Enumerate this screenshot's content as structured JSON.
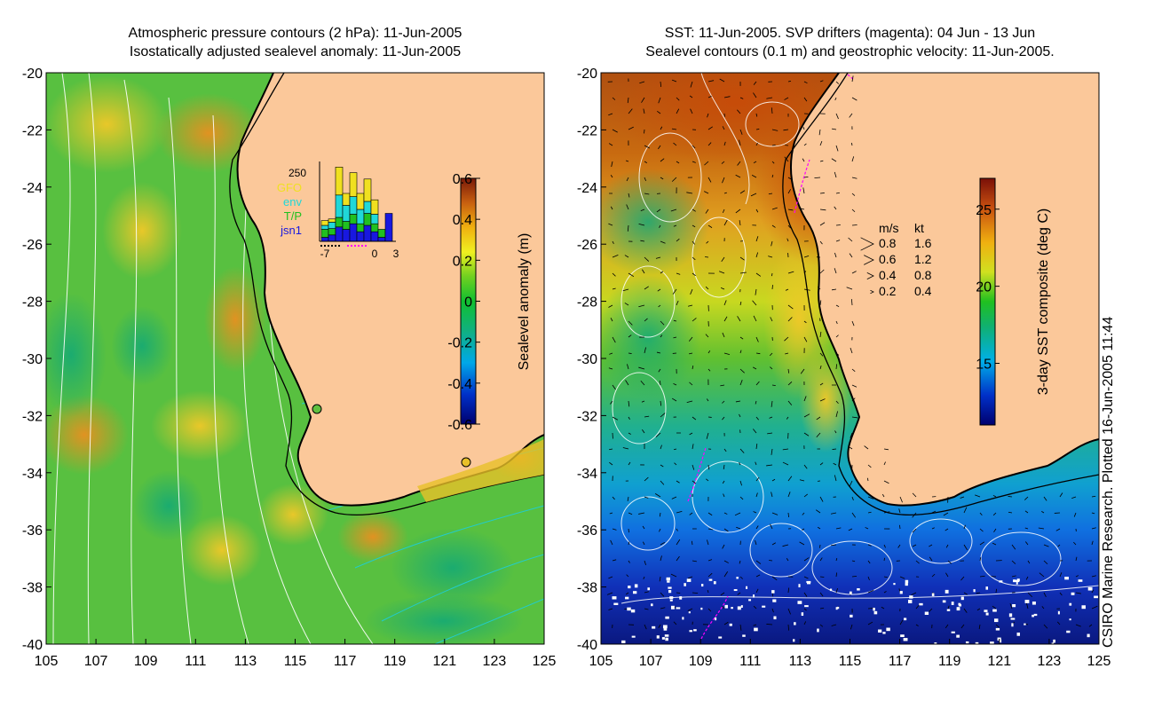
{
  "left_panel": {
    "title_line1": "Atmospheric pressure contours (2 hPa): 11-Jun-2005",
    "title_line2": "Isostatically adjusted sealevel anomaly: 11-Jun-2005",
    "y_ticks": [
      "-20",
      "-22",
      "-24",
      "-26",
      "-28",
      "-30",
      "-32",
      "-34",
      "-36",
      "-38",
      "-40"
    ],
    "x_ticks": [
      "105",
      "107",
      "109",
      "111",
      "113",
      "115",
      "117",
      "119",
      "121",
      "123",
      "125"
    ],
    "colorbar": {
      "label": "Sealevel anomaly (m)",
      "ticks": [
        "0.6",
        "0.4",
        "0.2",
        "0",
        "-0.2",
        "-0.4",
        "-0.6"
      ]
    },
    "inset": {
      "ymax_label": "250",
      "legend": [
        {
          "label": "GFO",
          "color": "#f0e020"
        },
        {
          "label": "env",
          "color": "#20d8d8"
        },
        {
          "label": "T/P",
          "color": "#20c020"
        },
        {
          "label": "jsn1",
          "color": "#1818e0"
        }
      ],
      "x_ticks": [
        "-7",
        "0",
        "3"
      ],
      "bars": [
        {
          "day": -7,
          "jsn1": 0.05,
          "tp": 0.1,
          "env": 0.05,
          "gfo": 0.06
        },
        {
          "day": -6,
          "jsn1": 0.08,
          "tp": 0.08,
          "env": 0.08,
          "gfo": 0.04
        },
        {
          "day": -5,
          "jsn1": 0.18,
          "tp": 0.12,
          "env": 0.28,
          "gfo": 0.35
        },
        {
          "day": -4,
          "jsn1": 0.15,
          "tp": 0.1,
          "env": 0.2,
          "gfo": 0.15
        },
        {
          "day": -3,
          "jsn1": 0.22,
          "tp": 0.12,
          "env": 0.22,
          "gfo": 0.3
        },
        {
          "day": -2,
          "jsn1": 0.12,
          "tp": 0.1,
          "env": 0.18,
          "gfo": 0.2
        },
        {
          "day": -1,
          "jsn1": 0.2,
          "tp": 0.15,
          "env": 0.15,
          "gfo": 0.28
        },
        {
          "day": 0,
          "jsn1": 0.12,
          "tp": 0.1,
          "env": 0.12,
          "gfo": 0.18
        },
        {
          "day": 1,
          "jsn1": 0.05,
          "tp": 0.1,
          "env": 0.0,
          "gfo": 0.0
        },
        {
          "day": 2,
          "jsn1": 0.35,
          "tp": 0.0,
          "env": 0.0,
          "gfo": 0.0
        }
      ]
    }
  },
  "right_panel": {
    "title_line1": "SST: 11-Jun-2005. SVP drifters (magenta): 04 Jun - 13 Jun",
    "title_line2": "Sealevel contours (0.1 m) and geostrophic velocity: 11-Jun-2005.",
    "y_ticks": [
      "-20",
      "-22",
      "-24",
      "-26",
      "-28",
      "-30",
      "-32",
      "-34",
      "-36",
      "-38",
      "-40"
    ],
    "x_ticks": [
      "105",
      "107",
      "109",
      "111",
      "113",
      "115",
      "117",
      "119",
      "121",
      "123",
      "125"
    ],
    "colorbar": {
      "label": "3-day SST composite (deg C)",
      "ticks": [
        "25",
        "20",
        "15"
      ]
    },
    "velocity_key": {
      "header_ms": "m/s",
      "header_kt": "kt",
      "rows": [
        {
          "ms": "0.8",
          "kt": "1.6"
        },
        {
          "ms": "0.6",
          "kt": "1.2"
        },
        {
          "ms": "0.4",
          "kt": "0.8"
        },
        {
          "ms": "0.2",
          "kt": "0.4"
        }
      ]
    }
  },
  "credit": "CSIRO Marine Research. Plotted 16-Jun-2005 11:44",
  "colors": {
    "land": "#fbc89a",
    "coast": "#000000",
    "contour_white": "#ffffff",
    "contour_cyan": "#22cccc",
    "drifter": "#ff00ff"
  },
  "map_extent": {
    "lon": [
      105,
      125
    ],
    "lat": [
      -40,
      -20
    ]
  }
}
